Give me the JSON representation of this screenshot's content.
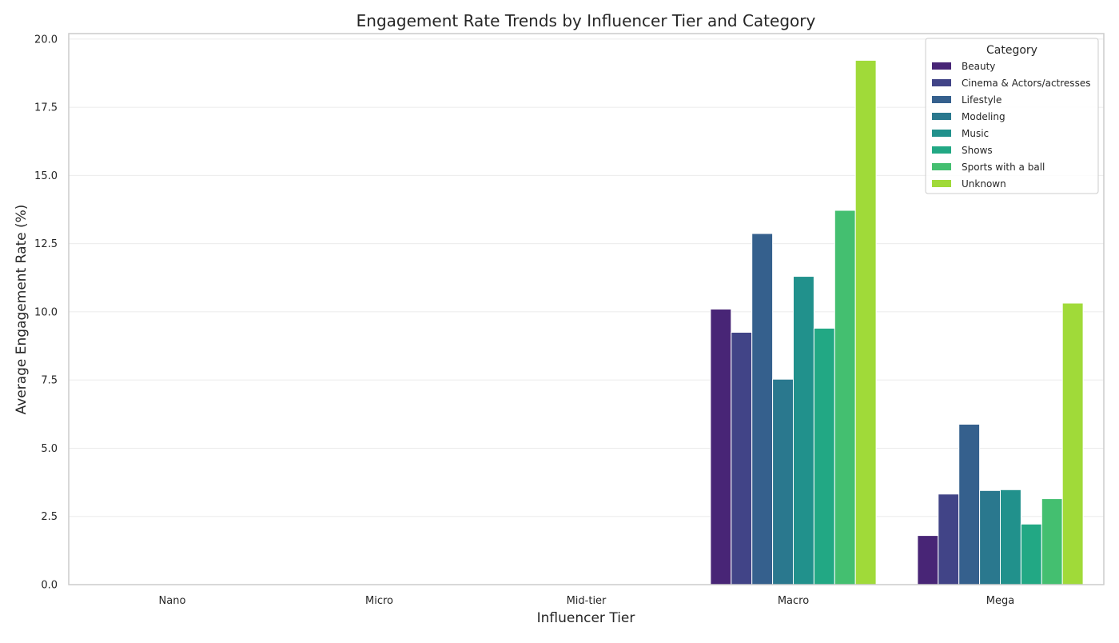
{
  "chart_data": {
    "type": "bar",
    "title": "Engagement Rate Trends by Influencer Tier and Category",
    "xlabel": "Influencer Tier",
    "ylabel": "Average Engagement Rate (%)",
    "categories": [
      "Nano",
      "Micro",
      "Mid-tier",
      "Macro",
      "Mega"
    ],
    "ylim": [
      0,
      20.2
    ],
    "yticks": [
      "0.0",
      "2.5",
      "5.0",
      "7.5",
      "10.0",
      "12.5",
      "15.0",
      "17.5",
      "20.0"
    ],
    "grid": "horizontal",
    "legend": {
      "title": "Category",
      "position": "top-right"
    },
    "series": [
      {
        "name": "Beauty",
        "color": "#482576",
        "values": [
          null,
          null,
          null,
          10.1,
          1.8
        ]
      },
      {
        "name": "Cinema & Actors/actresses",
        "color": "#414487",
        "values": [
          null,
          null,
          null,
          9.25,
          3.32
        ]
      },
      {
        "name": "Lifestyle",
        "color": "#35608d",
        "values": [
          null,
          null,
          null,
          12.87,
          5.88
        ]
      },
      {
        "name": "Modeling",
        "color": "#2a788e",
        "values": [
          null,
          null,
          null,
          7.53,
          3.45
        ]
      },
      {
        "name": "Music",
        "color": "#21918c",
        "values": [
          null,
          null,
          null,
          11.3,
          3.48
        ]
      },
      {
        "name": "Shows",
        "color": "#22a884",
        "values": [
          null,
          null,
          null,
          9.4,
          2.22
        ]
      },
      {
        "name": "Sports with a ball",
        "color": "#44bf70",
        "values": [
          null,
          null,
          null,
          13.72,
          3.15
        ]
      },
      {
        "name": "Unknown",
        "color": "#a0da39",
        "values": [
          null,
          null,
          null,
          19.22,
          10.32
        ]
      }
    ]
  },
  "colors": {
    "background": "#ffffff",
    "grid": "#ebebeb",
    "axis_frame": "#cccccc",
    "text": "#262626"
  }
}
